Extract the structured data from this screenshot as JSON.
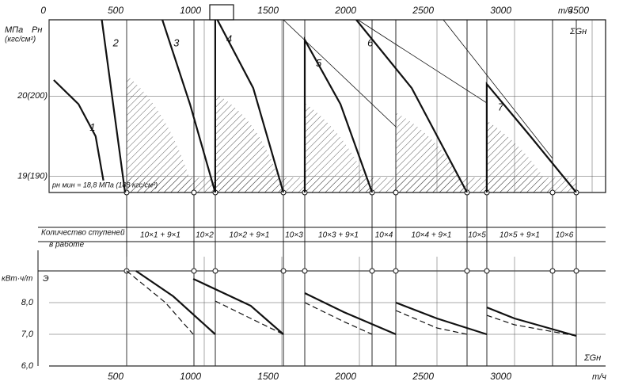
{
  "chart_data": [
    {
      "type": "line",
      "y_unit": "МПа",
      "y_unit_alt": "(кгс/см²)",
      "y_label": "Pн",
      "x_label": "ΣGн",
      "x_unit": "т/ч",
      "annotation": "pн мин = 18,8 МПа (188 кгс/см²)",
      "xlim": [
        0,
        3500
      ],
      "xticks": [
        0,
        500,
        1000,
        1500,
        2000,
        2500,
        3000,
        3500
      ],
      "ylim": [
        18.8,
        20.95
      ],
      "yticks": [
        {
          "value": 19,
          "label": "19(190)"
        },
        {
          "value": 20,
          "label": "20(200)"
        }
      ],
      "grid": true,
      "series": [
        {
          "name": "1",
          "color": "#111",
          "x": [
            30,
            190,
            300,
            350
          ],
          "values": [
            20.2,
            19.9,
            19.5,
            18.95
          ]
        },
        {
          "name": "2",
          "color": "#111",
          "x": [
            340,
            420,
            490
          ],
          "values": [
            20.95,
            19.8,
            18.8
          ]
        },
        {
          "name": "3",
          "color": "#111",
          "x": [
            730,
            908,
            1071
          ],
          "values": [
            20.95,
            19.9,
            18.8
          ]
        },
        {
          "name": "4",
          "color": "#111",
          "x": [
            1071,
            1071,
            1316,
            1510
          ],
          "values": [
            18.8,
            21.0,
            20.1,
            18.8
          ]
        },
        {
          "name": "5",
          "color": "#111",
          "x": [
            1648,
            1648,
            1878,
            2082
          ],
          "values": [
            18.8,
            20.7,
            19.9,
            18.8
          ]
        },
        {
          "name": "6",
          "color": "#111",
          "x": [
            1980,
            2337,
            2694
          ],
          "values": [
            20.95,
            20.1,
            18.8
          ]
        },
        {
          "name": "7",
          "color": "#111",
          "x": [
            2821,
            2821,
            3102,
            3398
          ],
          "values": [
            18.8,
            20.15,
            19.5,
            18.8
          ]
        }
      ]
    },
    {
      "type": "line",
      "table_header": [
        "Количество ступеней",
        "в работе"
      ],
      "stages": [
        "10×1 + 9×1",
        "10×2",
        "10×2 + 9×1",
        "10×3",
        "10×3 + 9×1",
        "10×4",
        "10×4 + 9×1",
        "10×5",
        "10×5 + 9×1",
        "10×6"
      ],
      "y_unit": "кВт·ч/т",
      "y_label": "Э",
      "x_label": "ΣGн",
      "x_unit": "т/ч",
      "xlim": [
        0,
        3500
      ],
      "xticks": [
        500,
        1000,
        1500,
        2000,
        2500,
        3000
      ],
      "ylim": [
        6.0,
        9.45
      ],
      "yticks": [
        {
          "value": 6,
          "label": "6,0"
        },
        {
          "value": 7,
          "label": "7,0"
        },
        {
          "value": 8,
          "label": "8,0"
        }
      ],
      "grid": true,
      "series": [
        {
          "color": "#111",
          "dash": false,
          "x": [
            560,
            800,
            1071,
            null,
            929,
            1300,
            1510,
            null,
            1648,
            1900,
            2235,
            null,
            2235,
            2500,
            2821,
            null,
            2821,
            3000,
            3398
          ],
          "values": [
            9.0,
            8.2,
            7.0,
            null,
            8.75,
            7.9,
            7.0,
            null,
            8.3,
            7.7,
            7.0,
            null,
            8.0,
            7.5,
            7.0,
            null,
            7.85,
            7.5,
            6.95
          ]
        },
        {
          "color": "#111",
          "dash": true,
          "x": [
            500,
            750,
            929,
            null,
            1071,
            1300,
            1510,
            null,
            1648,
            1900,
            2082,
            null,
            2235,
            2500,
            2694,
            null,
            2821,
            3000,
            3398
          ],
          "values": [
            9.0,
            8.0,
            7.0,
            null,
            8.05,
            7.5,
            7.0,
            null,
            8.0,
            7.4,
            7.0,
            null,
            7.75,
            7.2,
            7.0,
            null,
            7.6,
            7.3,
            6.95
          ]
        }
      ]
    }
  ]
}
